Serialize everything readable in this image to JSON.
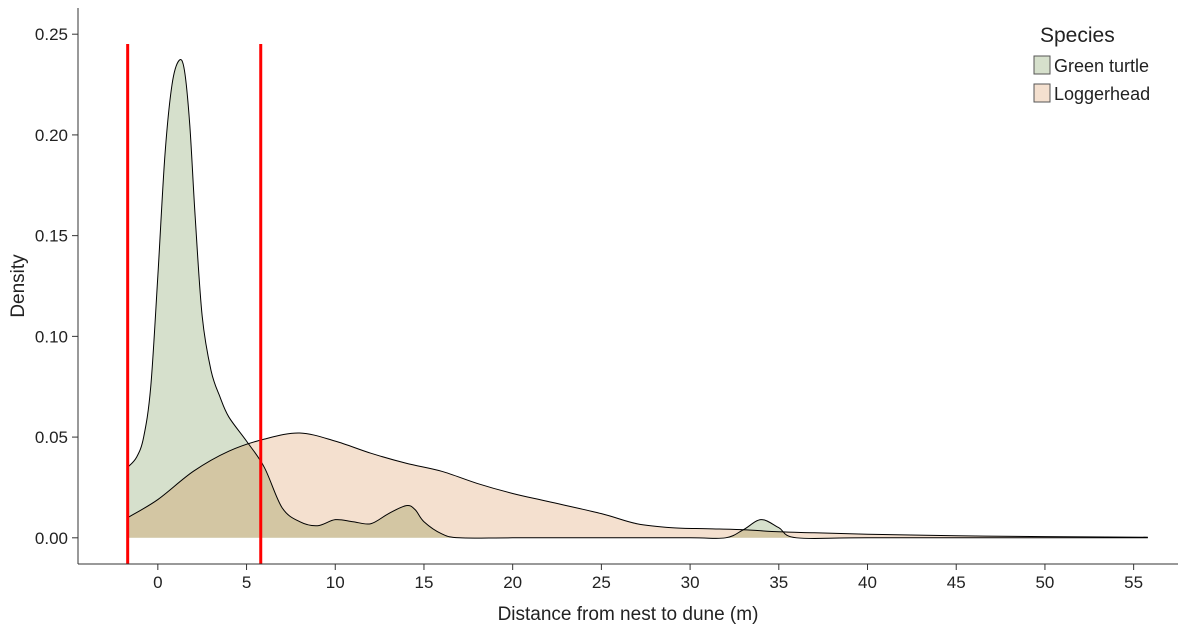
{
  "chart_data": {
    "type": "area",
    "title": "",
    "xlabel": "Distance from nest to dune (m)",
    "ylabel": "Density",
    "xlim": [
      -4.5,
      57.5
    ],
    "ylim": [
      -0.013,
      0.263
    ],
    "x_ticks": [
      0,
      5,
      10,
      15,
      20,
      25,
      30,
      35,
      40,
      45,
      50,
      55
    ],
    "y_ticks": [
      0.0,
      0.05,
      0.1,
      0.15,
      0.2,
      0.25
    ],
    "x_tick_labels": [
      "0",
      "5",
      "10",
      "15",
      "20",
      "25",
      "30",
      "35",
      "40",
      "45",
      "50",
      "55"
    ],
    "y_tick_labels": [
      "0.00",
      "0.05",
      "0.10",
      "0.15",
      "0.20",
      "0.25"
    ],
    "grid": false,
    "legend": {
      "title": "Species",
      "position": "top-right"
    },
    "series": [
      {
        "name": "Green turtle",
        "label": "Green turtle",
        "fill": "#d6e0cc",
        "x": [
          -1.7,
          -1.2,
          -0.8,
          -0.4,
          0,
          0.4,
          0.8,
          1.2,
          1.5,
          1.8,
          2.1,
          2.5,
          3,
          3.5,
          4,
          5,
          6,
          7,
          8,
          9,
          10,
          11,
          12,
          13,
          14,
          14.5,
          15,
          16,
          17,
          20,
          25,
          30,
          32,
          33,
          34,
          35,
          36,
          40,
          50,
          55.8
        ],
        "y": [
          0.035,
          0.04,
          0.05,
          0.075,
          0.13,
          0.19,
          0.225,
          0.237,
          0.232,
          0.205,
          0.16,
          0.11,
          0.083,
          0.07,
          0.06,
          0.048,
          0.035,
          0.015,
          0.008,
          0.006,
          0.009,
          0.008,
          0.007,
          0.012,
          0.016,
          0.014,
          0.008,
          0.002,
          0.0,
          0.0,
          0.0,
          0.0,
          0.0,
          0.004,
          0.009,
          0.005,
          0.0,
          0.0,
          0.0,
          0.0
        ]
      },
      {
        "name": "Loggerhead",
        "label": "Loggerhead",
        "fill": "#f4e0cf",
        "x": [
          -1.7,
          0,
          2,
          4,
          6,
          8,
          10,
          12,
          14,
          16,
          18,
          20,
          22,
          25,
          27,
          29,
          31,
          33,
          35,
          37,
          40,
          45,
          50,
          55.8
        ],
        "y": [
          0.01,
          0.019,
          0.033,
          0.043,
          0.049,
          0.052,
          0.048,
          0.042,
          0.037,
          0.033,
          0.027,
          0.022,
          0.018,
          0.012,
          0.007,
          0.005,
          0.0045,
          0.004,
          0.003,
          0.0025,
          0.0018,
          0.001,
          0.0006,
          0.0003
        ]
      }
    ],
    "overlap_fill": "#d3c6a3",
    "vlines": {
      "color": "#ff0000",
      "x": [
        -1.7,
        5.8
      ]
    }
  }
}
